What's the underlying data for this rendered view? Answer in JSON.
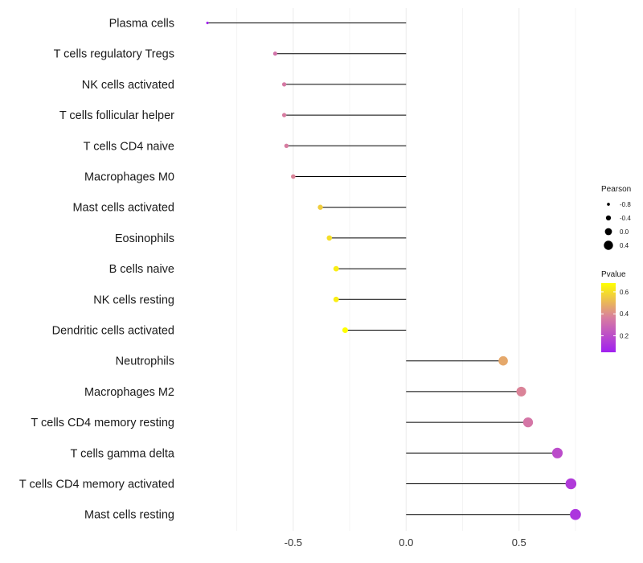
{
  "chart_data": {
    "type": "lollipop",
    "title": "",
    "xlabel": "",
    "ylabel": "",
    "xlim": [
      -0.98,
      0.8
    ],
    "x_ticks": [
      -0.5,
      0.0,
      0.5
    ],
    "x_tick_labels": [
      "-0.5",
      "0.0",
      "0.5"
    ],
    "grid": true,
    "categories": [
      "Plasma cells",
      "T cells regulatory  Tregs",
      "NK cells activated",
      "T cells follicular helper",
      "T cells CD4 naive",
      "Macrophages M0",
      "Mast cells activated",
      "Eosinophils",
      "B cells naive",
      "NK cells resting",
      "Dendritic cells activated",
      "Neutrophils",
      "Macrophages M2",
      "T cells CD4 memory resting",
      "T cells gamma delta",
      "T cells CD4 memory activated",
      "Mast cells resting"
    ],
    "pearson": [
      -0.88,
      -0.58,
      -0.54,
      -0.54,
      -0.53,
      -0.5,
      -0.38,
      -0.34,
      -0.31,
      -0.31,
      -0.27,
      0.43,
      0.51,
      0.54,
      0.67,
      0.73,
      0.75
    ],
    "pvalue": [
      0.06,
      0.33,
      0.35,
      0.36,
      0.36,
      0.38,
      0.56,
      0.6,
      0.64,
      0.64,
      0.68,
      0.47,
      0.38,
      0.34,
      0.2,
      0.14,
      0.12
    ],
    "legend_size": {
      "title": "Pearson",
      "values": [
        -0.8,
        -0.4,
        0.0,
        0.4
      ],
      "labels": [
        "-0.8",
        "-0.4",
        "0.0",
        "0.4"
      ]
    },
    "legend_color": {
      "title": "Pvalue",
      "range": [
        0.05,
        0.68
      ],
      "ticks": [
        0.2,
        0.4,
        0.6
      ],
      "tick_labels": [
        "0.2",
        "0.4",
        "0.6"
      ],
      "low_color": "#a020f0",
      "high_color": "#ffff00"
    },
    "legend_position": "right"
  }
}
